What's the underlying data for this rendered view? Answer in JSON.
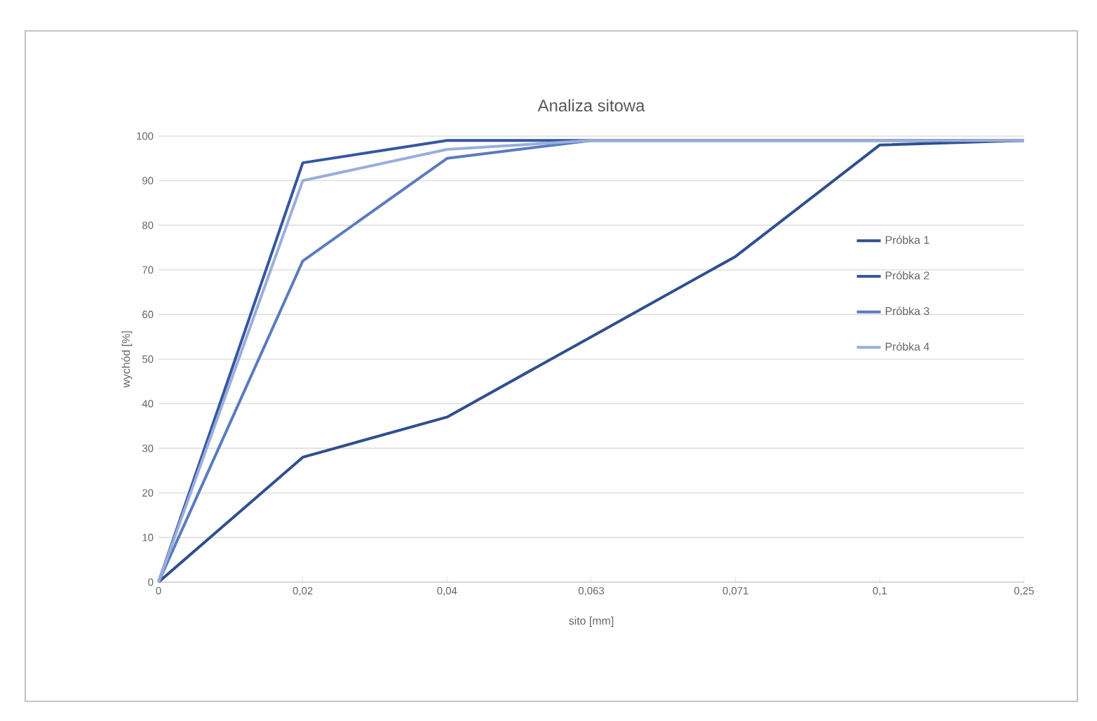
{
  "chart_data": {
    "type": "line",
    "title": "Analiza sitowa",
    "xlabel": "sito [mm]",
    "ylabel": "wychód [%]",
    "categories": [
      "0",
      "0,02",
      "0,04",
      "0,063",
      "0,071",
      "0,1",
      "0,25"
    ],
    "series": [
      {
        "name": "Próbka 1",
        "color": "#2f4f8f",
        "values": [
          0,
          28,
          37,
          55,
          73,
          98,
          99
        ]
      },
      {
        "name": "Próbka 2",
        "color": "#3556a3",
        "values": [
          0,
          94,
          99,
          99,
          99,
          99,
          99
        ]
      },
      {
        "name": "Próbka 3",
        "color": "#5a7bbf",
        "values": [
          0,
          72,
          95,
          99,
          99,
          99,
          99
        ]
      },
      {
        "name": "Próbka 4",
        "color": "#9aaedb",
        "values": [
          0,
          90,
          97,
          99,
          99,
          99,
          99
        ]
      }
    ],
    "ylim": [
      0,
      100
    ],
    "yticks": [
      0,
      10,
      20,
      30,
      40,
      50,
      60,
      70,
      80,
      90,
      100
    ],
    "grid": "y",
    "legend": "right",
    "marker": "none",
    "line_style": "solid"
  }
}
